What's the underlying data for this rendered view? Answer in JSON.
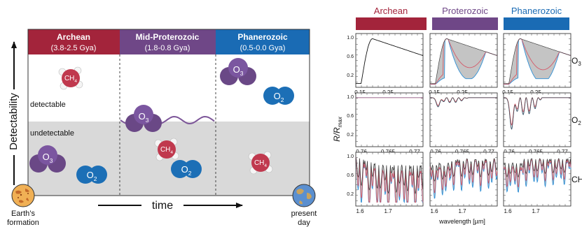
{
  "left": {
    "eras": [
      {
        "name": "Archean",
        "range": "(3.8-2.5 Gya)",
        "color": "#a3243b"
      },
      {
        "name": "Mid-Proterozoic",
        "range": "(1.8-0.8 Gya)",
        "color": "#6f4787"
      },
      {
        "name": "Phanerozoic",
        "range": "(0.5-0.0 Gya)",
        "color": "#1a6bb4"
      }
    ],
    "y_axis_label": "Detectability",
    "x_axis_label": "time",
    "zone_detectable": "detectable",
    "zone_undetectable": "undetectable",
    "start_label": [
      "Earth’s",
      "formation"
    ],
    "end_label": [
      "present",
      "day"
    ],
    "molecules": {
      "ch4": "CH",
      "ch4_sub": "4",
      "o3": "O",
      "o3_sub": "3",
      "o2": "O",
      "o2_sub": "2"
    },
    "colors": {
      "undetectable_zone": "#d9d9d9",
      "ch4": "#c0394e",
      "o3": "#6a4886",
      "o2": "#1c6fb6"
    }
  },
  "right": {
    "eras": [
      {
        "name": "Archean",
        "color": "#a3243b"
      },
      {
        "name": "Proterozoic",
        "color": "#6f4787"
      },
      {
        "name": "Phanerozoic",
        "color": "#1a6bb4"
      }
    ],
    "y_axis_label": "R/R",
    "y_axis_sub": "max",
    "x_axis_label": "wavelength [µm]",
    "rows": [
      {
        "species": "O",
        "sub": "3",
        "x_ticks": [
          "0.15",
          "0.25"
        ],
        "y_ticks": [
          "1.0",
          "0.6",
          "0.2"
        ]
      },
      {
        "species": "O",
        "sub": "2",
        "x_ticks": [
          "0.76",
          "0.765",
          "0.77"
        ],
        "y_ticks": [
          "1.0",
          "0.6",
          "0.2"
        ]
      },
      {
        "species": "CH",
        "sub": "4",
        "x_ticks": [
          "1.6",
          "1.7"
        ],
        "y_ticks": [
          "1.0",
          "0.6",
          "0.2"
        ]
      }
    ]
  }
}
